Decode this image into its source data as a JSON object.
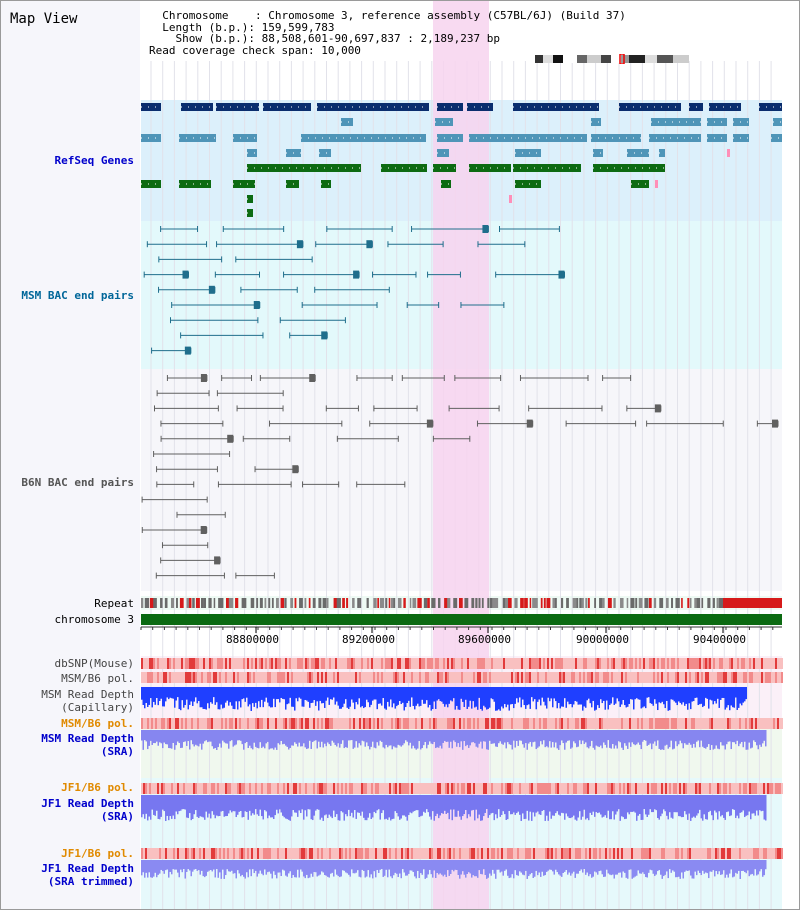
{
  "panel_title": "Map View",
  "header": {
    "chromosome_label": "Chromosome    ",
    "chromosome_value": ": Chromosome 3, reference assembly (C57BL/6J) (Build 37)",
    "length_label": "Length (b.p.)",
    "length_value": ": 159,599,783",
    "show_label": "Show (b.p.)",
    "show_value": ": 88,508,601-90,697,837 : 2,189,237 bp",
    "coverage_label": "Read coverage check span",
    "coverage_value": ": 10,000"
  },
  "ruler": {
    "ticks": [
      "88800000",
      "89200000",
      "89600000",
      "90000000",
      "90400000"
    ]
  },
  "tracks": {
    "refseq": "RefSeq Genes",
    "msm_bac": "MSM BAC end pairs",
    "b6n_bac": "B6N BAC end pairs",
    "repeat": "Repeat",
    "chromosome": "chromosome 3",
    "dbsnp": "dbSNP(Mouse)",
    "msm_b6_pol_1": "MSM/B6 pol.",
    "msm_depth_cap_1": "MSM Read Depth",
    "msm_depth_cap_2": "(Capillary)",
    "msm_b6_pol_2": "MSM/B6 pol.",
    "msm_depth_sra_1": "MSM Read Depth",
    "msm_depth_sra_2": "(SRA)",
    "jf1_b6_pol_1": "JF1/B6 pol.",
    "jf1_depth_sra_1": "JF1 Read Depth",
    "jf1_depth_sra_2": "(SRA)",
    "jf1_b6_pol_2": "JF1/B6 pol.",
    "jf1_depth_trim_1": "JF1 Read Depth",
    "jf1_depth_trim_2": "(SRA trimmed)"
  },
  "colors": {
    "refseq_label": "#0000cc",
    "msm_bac_label": "#006699",
    "b6n_bac_label": "#555555",
    "orange_label": "#e08a00",
    "blue_label": "#0000cc",
    "highlight": "#f7d3ef",
    "gene_dark": "#0a2d6e",
    "gene_mid": "#4f95b8",
    "gene_green": "#0d6b12",
    "msm_bac": "#1f6e8c",
    "b6n_bac": "#606060",
    "chromosome_bar": "#0c6a12"
  }
}
